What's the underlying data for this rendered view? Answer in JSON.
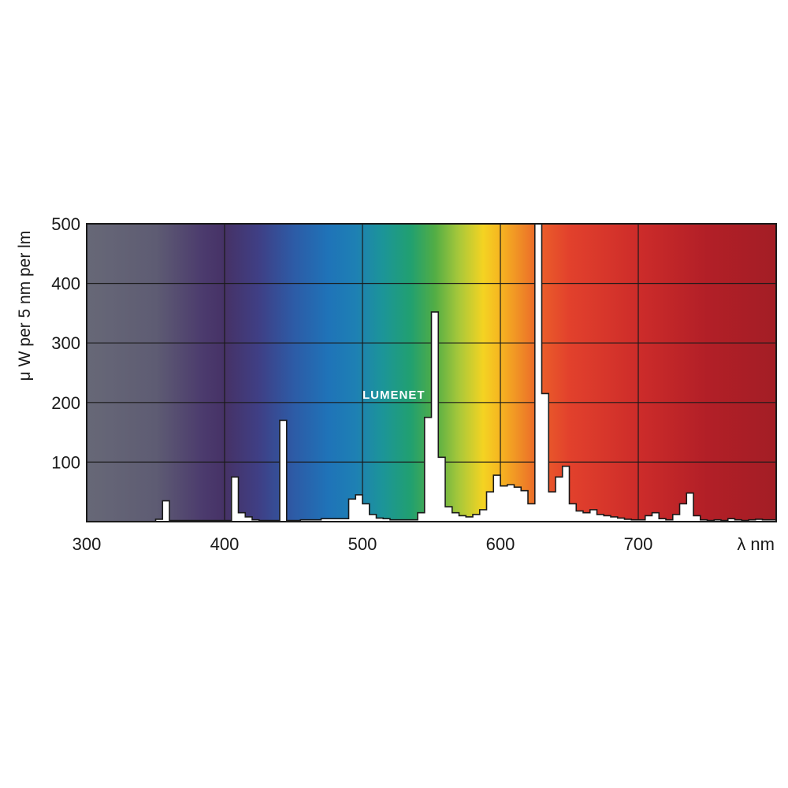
{
  "chart_data": {
    "type": "area",
    "title": "",
    "xlabel": "λ nm",
    "ylabel": "μ W per 5 nm per lm",
    "xlim": [
      300,
      800
    ],
    "ylim": [
      0,
      500
    ],
    "x_ticks": [
      "300",
      "400",
      "500",
      "600",
      "700"
    ],
    "y_ticks": [
      "100",
      "200",
      "300",
      "400",
      "500"
    ],
    "grid": true,
    "background": "visible spectrum gradient",
    "watermark": "LUMENET",
    "series": [
      {
        "step_width_nm": 5,
        "x": [
          300,
          305,
          310,
          315,
          320,
          325,
          330,
          335,
          340,
          345,
          350,
          355,
          360,
          365,
          370,
          375,
          380,
          385,
          390,
          395,
          400,
          405,
          410,
          415,
          420,
          425,
          430,
          435,
          440,
          445,
          450,
          455,
          460,
          465,
          470,
          475,
          480,
          485,
          490,
          495,
          500,
          505,
          510,
          515,
          520,
          525,
          530,
          535,
          540,
          545,
          550,
          555,
          560,
          565,
          570,
          575,
          580,
          585,
          590,
          595,
          600,
          605,
          610,
          615,
          620,
          625,
          630,
          635,
          640,
          645,
          650,
          655,
          660,
          665,
          670,
          675,
          680,
          685,
          690,
          695,
          700,
          705,
          710,
          715,
          720,
          725,
          730,
          735,
          740,
          745,
          750,
          755,
          760,
          765,
          770,
          775,
          780,
          785,
          790,
          795
        ],
        "values": [
          0,
          0,
          0,
          0,
          0,
          0,
          0,
          0,
          0,
          0,
          4,
          35,
          2,
          2,
          2,
          2,
          2,
          2,
          2,
          2,
          2,
          75,
          15,
          8,
          3,
          2,
          2,
          2,
          170,
          2,
          2,
          3,
          3,
          3,
          5,
          5,
          5,
          5,
          38,
          45,
          30,
          12,
          6,
          5,
          3,
          3,
          3,
          3,
          15,
          175,
          352,
          108,
          25,
          15,
          10,
          8,
          12,
          20,
          50,
          78,
          60,
          62,
          58,
          52,
          30,
          500,
          215,
          50,
          75,
          93,
          30,
          18,
          15,
          20,
          12,
          10,
          8,
          6,
          4,
          3,
          3,
          10,
          15,
          5,
          3,
          12,
          30,
          48,
          10,
          3,
          2,
          3,
          2,
          5,
          3,
          2,
          3,
          4,
          3,
          3
        ]
      }
    ]
  }
}
